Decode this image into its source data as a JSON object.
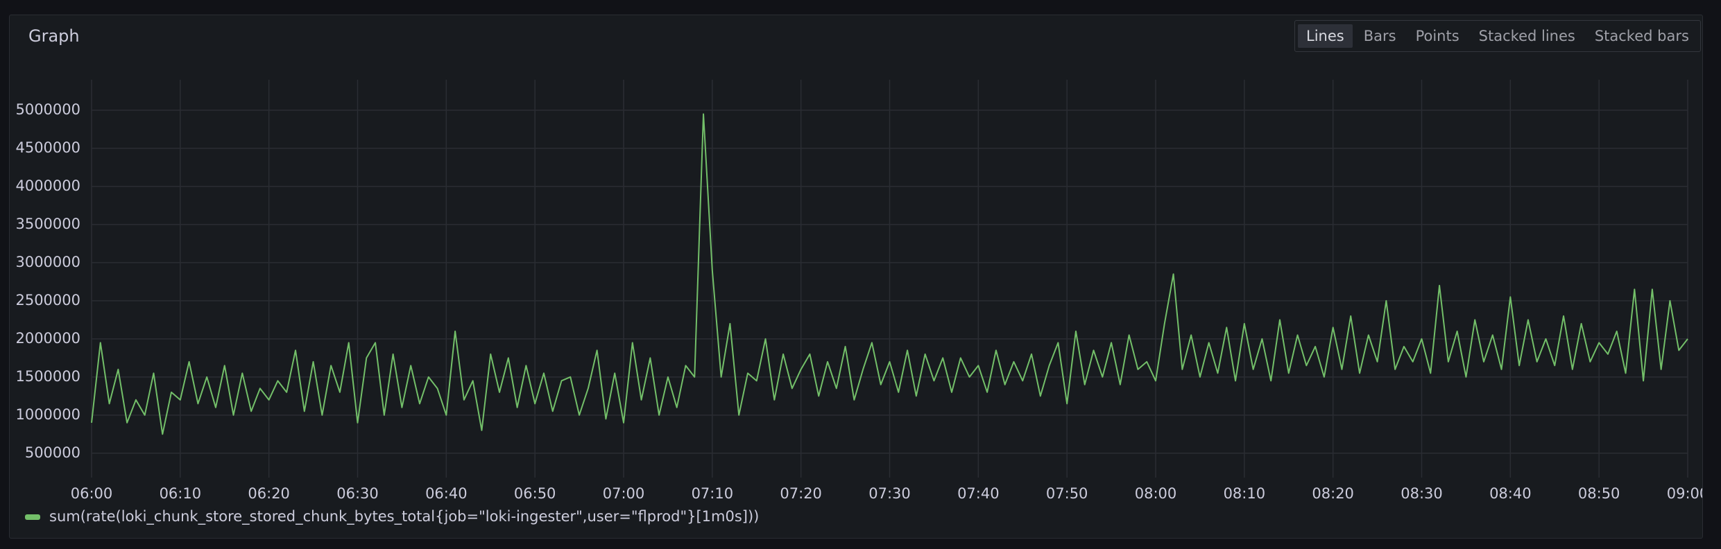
{
  "chart_data": {
    "type": "line",
    "title": "Graph",
    "toolbar": {
      "options": [
        "Lines",
        "Bars",
        "Points",
        "Stacked lines",
        "Stacked bars"
      ],
      "selected": "Lines"
    },
    "x": [
      "06:00",
      "06:01",
      "06:02",
      "06:03",
      "06:04",
      "06:05",
      "06:06",
      "06:07",
      "06:08",
      "06:09",
      "06:10",
      "06:11",
      "06:12",
      "06:13",
      "06:14",
      "06:15",
      "06:16",
      "06:17",
      "06:18",
      "06:19",
      "06:20",
      "06:21",
      "06:22",
      "06:23",
      "06:24",
      "06:25",
      "06:26",
      "06:27",
      "06:28",
      "06:29",
      "06:30",
      "06:31",
      "06:32",
      "06:33",
      "06:34",
      "06:35",
      "06:36",
      "06:37",
      "06:38",
      "06:39",
      "06:40",
      "06:41",
      "06:42",
      "06:43",
      "06:44",
      "06:45",
      "06:46",
      "06:47",
      "06:48",
      "06:49",
      "06:50",
      "06:51",
      "06:52",
      "06:53",
      "06:54",
      "06:55",
      "06:56",
      "06:57",
      "06:58",
      "06:59",
      "07:00",
      "07:01",
      "07:02",
      "07:03",
      "07:04",
      "07:05",
      "07:06",
      "07:07",
      "07:08",
      "07:09",
      "07:10",
      "07:11",
      "07:12",
      "07:13",
      "07:14",
      "07:15",
      "07:16",
      "07:17",
      "07:18",
      "07:19",
      "07:20",
      "07:21",
      "07:22",
      "07:23",
      "07:24",
      "07:25",
      "07:26",
      "07:27",
      "07:28",
      "07:29",
      "07:30",
      "07:31",
      "07:32",
      "07:33",
      "07:34",
      "07:35",
      "07:36",
      "07:37",
      "07:38",
      "07:39",
      "07:40",
      "07:41",
      "07:42",
      "07:43",
      "07:44",
      "07:45",
      "07:46",
      "07:47",
      "07:48",
      "07:49",
      "07:50",
      "07:51",
      "07:52",
      "07:53",
      "07:54",
      "07:55",
      "07:56",
      "07:57",
      "07:58",
      "07:59",
      "08:00",
      "08:01",
      "08:02",
      "08:03",
      "08:04",
      "08:05",
      "08:06",
      "08:07",
      "08:08",
      "08:09",
      "08:10",
      "08:11",
      "08:12",
      "08:13",
      "08:14",
      "08:15",
      "08:16",
      "08:17",
      "08:18",
      "08:19",
      "08:20",
      "08:21",
      "08:22",
      "08:23",
      "08:24",
      "08:25",
      "08:26",
      "08:27",
      "08:28",
      "08:29",
      "08:30",
      "08:31",
      "08:32",
      "08:33",
      "08:34",
      "08:35",
      "08:36",
      "08:37",
      "08:38",
      "08:39",
      "08:40",
      "08:41",
      "08:42",
      "08:43",
      "08:44",
      "08:45",
      "08:46",
      "08:47",
      "08:48",
      "08:49",
      "08:50",
      "08:51",
      "08:52",
      "08:53",
      "08:54",
      "08:55",
      "08:56",
      "08:57",
      "08:58",
      "08:59",
      "09:00"
    ],
    "series": [
      {
        "name": "sum(rate(loki_chunk_store_stored_chunk_bytes_total{job=\"loki-ingester\",user=\"flprod\"}[1m0s]))",
        "color": "#73bf69",
        "values": [
          900000,
          1950000,
          1150000,
          1600000,
          900000,
          1200000,
          1000000,
          1550000,
          750000,
          1300000,
          1200000,
          1700000,
          1150000,
          1500000,
          1100000,
          1650000,
          1000000,
          1550000,
          1050000,
          1350000,
          1200000,
          1450000,
          1300000,
          1850000,
          1050000,
          1700000,
          1000000,
          1650000,
          1300000,
          1950000,
          900000,
          1750000,
          1950000,
          1000000,
          1800000,
          1100000,
          1650000,
          1150000,
          1500000,
          1350000,
          1000000,
          2100000,
          1200000,
          1450000,
          800000,
          1800000,
          1300000,
          1750000,
          1100000,
          1650000,
          1150000,
          1550000,
          1050000,
          1450000,
          1500000,
          1000000,
          1350000,
          1850000,
          950000,
          1550000,
          900000,
          1950000,
          1200000,
          1750000,
          1000000,
          1500000,
          1100000,
          1650000,
          1500000,
          4950000,
          2900000,
          1500000,
          2200000,
          1000000,
          1550000,
          1450000,
          2000000,
          1200000,
          1800000,
          1350000,
          1600000,
          1800000,
          1250000,
          1700000,
          1350000,
          1900000,
          1200000,
          1600000,
          1950000,
          1400000,
          1700000,
          1300000,
          1850000,
          1250000,
          1800000,
          1450000,
          1750000,
          1300000,
          1750000,
          1500000,
          1650000,
          1300000,
          1850000,
          1400000,
          1700000,
          1450000,
          1800000,
          1250000,
          1650000,
          1950000,
          1150000,
          2100000,
          1400000,
          1850000,
          1500000,
          1950000,
          1400000,
          2050000,
          1600000,
          1700000,
          1450000,
          2200000,
          2850000,
          1600000,
          2050000,
          1500000,
          1950000,
          1550000,
          2150000,
          1450000,
          2200000,
          1600000,
          2000000,
          1450000,
          2250000,
          1550000,
          2050000,
          1650000,
          1900000,
          1500000,
          2150000,
          1600000,
          2300000,
          1550000,
          2050000,
          1700000,
          2500000,
          1600000,
          1900000,
          1700000,
          2000000,
          1550000,
          2700000,
          1700000,
          2100000,
          1500000,
          2250000,
          1700000,
          2050000,
          1600000,
          2550000,
          1650000,
          2250000,
          1700000,
          2000000,
          1650000,
          2300000,
          1600000,
          2200000,
          1700000,
          1950000,
          1800000,
          2100000,
          1550000,
          2650000,
          1450000,
          2650000,
          1600000,
          2500000,
          1850000,
          2000000
        ]
      }
    ],
    "xlim": [
      "06:00",
      "09:00"
    ],
    "xticks": [
      "06:00",
      "06:10",
      "06:20",
      "06:30",
      "06:40",
      "06:50",
      "07:00",
      "07:10",
      "07:20",
      "07:30",
      "07:40",
      "07:50",
      "08:00",
      "08:10",
      "08:20",
      "08:30",
      "08:40",
      "08:50",
      "09:00"
    ],
    "ylim": [
      180000,
      5400000
    ],
    "yticks": [
      500000,
      1000000,
      1500000,
      2000000,
      2500000,
      3000000,
      3500000,
      4000000,
      4500000,
      5000000
    ],
    "grid": true
  }
}
